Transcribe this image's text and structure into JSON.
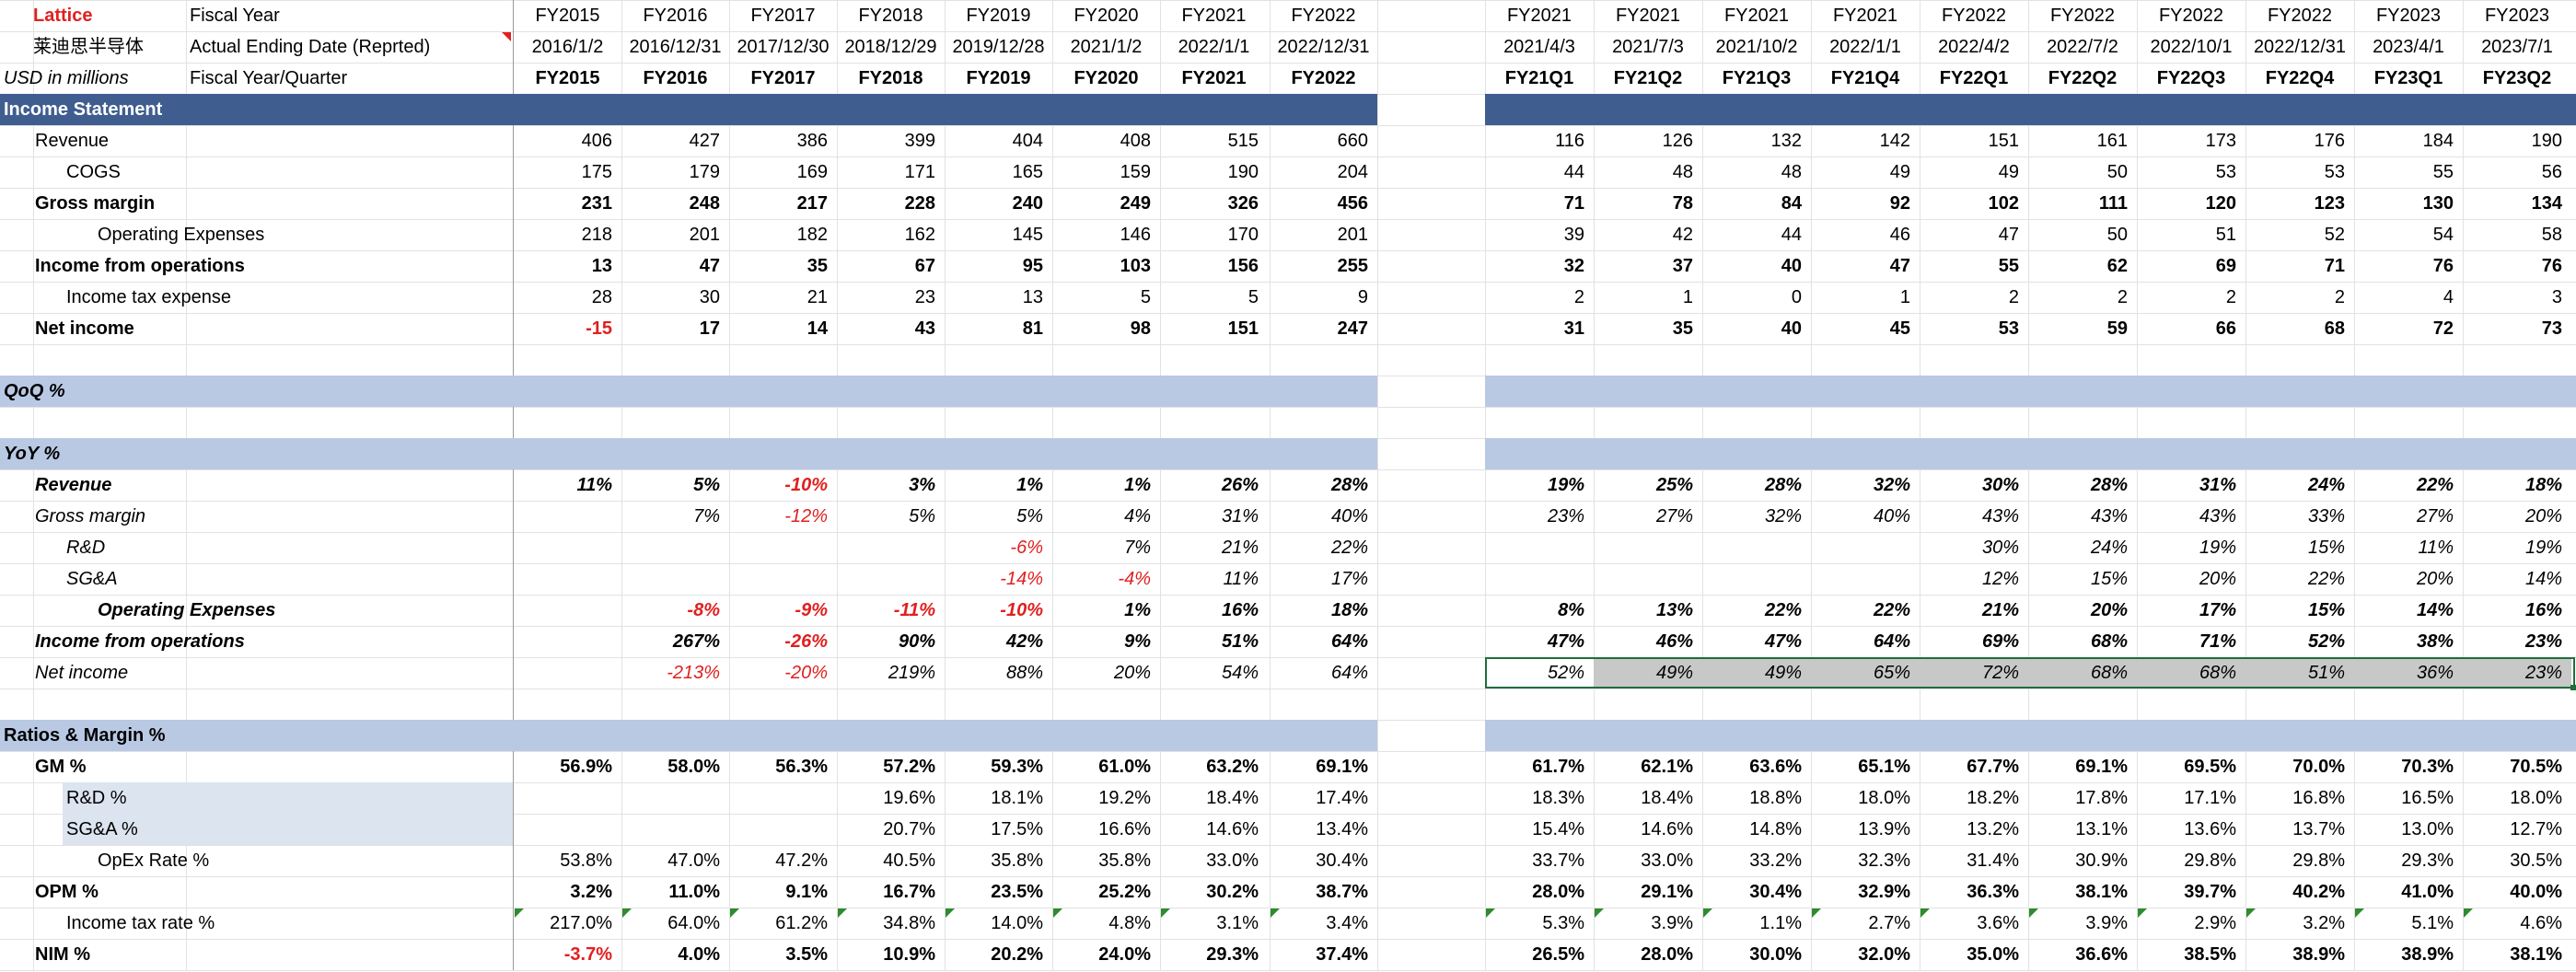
{
  "colors": {
    "header_band": "#3f5d8f",
    "section_band": "#b9c9e4",
    "shaded_label": "#dce4f0",
    "gray_fill": "#c8c8c8",
    "negative": "#e02020",
    "selection": "#1e6e3c"
  },
  "header": {
    "company": "Lattice",
    "company_cn": "莱迪思半导体",
    "units": "USD in millions",
    "row1_label": "Fiscal Year",
    "row2_label": "Actual Ending Date (Reprted)",
    "row3_label": "Fiscal Year/Quarter"
  },
  "annual": {
    "fiscal_years": [
      "FY2015",
      "FY2016",
      "FY2017",
      "FY2018",
      "FY2019",
      "FY2020",
      "FY2021",
      "FY2022"
    ],
    "end_dates": [
      "2016/1/2",
      "2016/12/31",
      "2017/12/30",
      "2018/12/29",
      "2019/12/28",
      "2021/1/2",
      "2022/1/1",
      "2022/12/31"
    ],
    "periods": [
      "FY2015",
      "FY2016",
      "FY2017",
      "FY2018",
      "FY2019",
      "FY2020",
      "FY2021",
      "FY2022"
    ]
  },
  "quarterly": {
    "fiscal_years": [
      "FY2021",
      "FY2021",
      "FY2021",
      "FY2021",
      "FY2022",
      "FY2022",
      "FY2022",
      "FY2022",
      "FY2023",
      "FY2023"
    ],
    "end_dates": [
      "2021/4/3",
      "2021/7/3",
      "2021/10/2",
      "2022/1/1",
      "2022/4/2",
      "2022/7/2",
      "2022/10/1",
      "2022/12/31",
      "2023/4/1",
      "2023/7/1"
    ],
    "periods": [
      "FY21Q1",
      "FY21Q2",
      "FY21Q3",
      "FY21Q4",
      "FY22Q1",
      "FY22Q2",
      "FY22Q3",
      "FY22Q4",
      "FY23Q1",
      "FY23Q2"
    ]
  },
  "rows": [
    {
      "type": "section",
      "label": "Income Statement",
      "style": "dark"
    },
    {
      "label": "Revenue",
      "indent": 1,
      "annual": [
        "406",
        "427",
        "386",
        "399",
        "404",
        "408",
        "515",
        "660"
      ],
      "quarterly": [
        "116",
        "126",
        "132",
        "142",
        "151",
        "161",
        "173",
        "176",
        "184",
        "190"
      ]
    },
    {
      "label": "COGS",
      "indent": 2,
      "annual": [
        "175",
        "179",
        "169",
        "171",
        "165",
        "159",
        "190",
        "204"
      ],
      "quarterly": [
        "44",
        "48",
        "48",
        "49",
        "49",
        "50",
        "53",
        "53",
        "55",
        "56"
      ]
    },
    {
      "label": "Gross margin",
      "indent": 1,
      "bold": true,
      "annual": [
        "231",
        "248",
        "217",
        "228",
        "240",
        "249",
        "326",
        "456"
      ],
      "quarterly": [
        "71",
        "78",
        "84",
        "92",
        "102",
        "111",
        "120",
        "123",
        "130",
        "134"
      ]
    },
    {
      "label": "Operating Expenses",
      "indent": 3,
      "annual": [
        "218",
        "201",
        "182",
        "162",
        "145",
        "146",
        "170",
        "201"
      ],
      "quarterly": [
        "39",
        "42",
        "44",
        "46",
        "47",
        "50",
        "51",
        "52",
        "54",
        "58"
      ]
    },
    {
      "label": "Income from operations",
      "indent": 1,
      "bold": true,
      "annual": [
        "13",
        "47",
        "35",
        "67",
        "95",
        "103",
        "156",
        "255"
      ],
      "quarterly": [
        "32",
        "37",
        "40",
        "47",
        "55",
        "62",
        "69",
        "71",
        "76",
        "76"
      ]
    },
    {
      "label": "Income tax expense",
      "indent": 2,
      "annual": [
        "28",
        "30",
        "21",
        "23",
        "13",
        "5",
        "5",
        "9"
      ],
      "quarterly": [
        "2",
        "1",
        "0",
        "1",
        "2",
        "2",
        "2",
        "2",
        "4",
        "3"
      ]
    },
    {
      "label": "Net income",
      "indent": 1,
      "bold": true,
      "annual": [
        "-15",
        "17",
        "14",
        "43",
        "81",
        "98",
        "151",
        "247"
      ],
      "quarterly": [
        "31",
        "35",
        "40",
        "45",
        "53",
        "59",
        "66",
        "68",
        "72",
        "73"
      ]
    },
    {
      "type": "blank"
    },
    {
      "type": "section",
      "label": "QoQ %",
      "style": "light",
      "italic": true
    },
    {
      "type": "blank"
    },
    {
      "type": "section",
      "label": "YoY %",
      "style": "light",
      "italic": true
    },
    {
      "label": "Revenue",
      "indent": 1,
      "bold": true,
      "italic": true,
      "annual": [
        "11%",
        "5%",
        "-10%",
        "3%",
        "1%",
        "1%",
        "26%",
        "28%"
      ],
      "quarterly": [
        "19%",
        "25%",
        "28%",
        "32%",
        "30%",
        "28%",
        "31%",
        "24%",
        "22%",
        "18%"
      ]
    },
    {
      "label": "Gross margin",
      "indent": 1,
      "italic": true,
      "annual": [
        "",
        "7%",
        "-12%",
        "5%",
        "5%",
        "4%",
        "31%",
        "40%"
      ],
      "quarterly": [
        "23%",
        "27%",
        "32%",
        "40%",
        "43%",
        "43%",
        "43%",
        "33%",
        "27%",
        "20%"
      ]
    },
    {
      "label": "R&D",
      "indent": 2,
      "italic": true,
      "annual": [
        "",
        "",
        "",
        "",
        "-6%",
        "7%",
        "21%",
        "22%"
      ],
      "quarterly": [
        "",
        "",
        "",
        "",
        "30%",
        "24%",
        "19%",
        "15%",
        "11%",
        "19%"
      ]
    },
    {
      "label": "SG&A",
      "indent": 2,
      "italic": true,
      "annual": [
        "",
        "",
        "",
        "",
        "-14%",
        "-4%",
        "11%",
        "17%"
      ],
      "quarterly": [
        "",
        "",
        "",
        "",
        "12%",
        "15%",
        "20%",
        "22%",
        "20%",
        "14%"
      ]
    },
    {
      "label": "Operating Expenses",
      "indent": 3,
      "bold": true,
      "italic": true,
      "annual": [
        "",
        "-8%",
        "-9%",
        "-11%",
        "-10%",
        "1%",
        "16%",
        "18%"
      ],
      "quarterly": [
        "8%",
        "13%",
        "22%",
        "22%",
        "21%",
        "20%",
        "17%",
        "15%",
        "14%",
        "16%"
      ]
    },
    {
      "label": "Income from operations",
      "indent": 1,
      "bold": true,
      "italic": true,
      "annual": [
        "",
        "267%",
        "-26%",
        "90%",
        "42%",
        "9%",
        "51%",
        "64%"
      ],
      "quarterly": [
        "47%",
        "46%",
        "47%",
        "64%",
        "69%",
        "68%",
        "71%",
        "52%",
        "38%",
        "23%"
      ]
    },
    {
      "label": "Net income",
      "indent": 1,
      "italic": true,
      "selected": true,
      "annual": [
        "",
        "-213%",
        "-20%",
        "219%",
        "88%",
        "20%",
        "54%",
        "64%"
      ],
      "quarterly": [
        "52%",
        "49%",
        "49%",
        "65%",
        "72%",
        "68%",
        "68%",
        "51%",
        "36%",
        "23%"
      ]
    },
    {
      "type": "blank"
    },
    {
      "type": "section",
      "label": "Ratios & Margin %",
      "style": "light"
    },
    {
      "label": "GM %",
      "indent": 1,
      "bold": true,
      "annual": [
        "56.9%",
        "58.0%",
        "56.3%",
        "57.2%",
        "59.3%",
        "61.0%",
        "63.2%",
        "69.1%"
      ],
      "quarterly": [
        "61.7%",
        "62.1%",
        "63.6%",
        "65.1%",
        "67.7%",
        "69.1%",
        "69.5%",
        "70.0%",
        "70.3%",
        "70.5%"
      ]
    },
    {
      "label": "R&D %",
      "indent": 2,
      "shaded": true,
      "annual": [
        "",
        "",
        "",
        "19.6%",
        "18.1%",
        "19.2%",
        "18.4%",
        "17.4%"
      ],
      "quarterly": [
        "18.3%",
        "18.4%",
        "18.8%",
        "18.0%",
        "18.2%",
        "17.8%",
        "17.1%",
        "16.8%",
        "16.5%",
        "18.0%"
      ]
    },
    {
      "label": "SG&A %",
      "indent": 2,
      "shaded": true,
      "annual": [
        "",
        "",
        "",
        "20.7%",
        "17.5%",
        "16.6%",
        "14.6%",
        "13.4%"
      ],
      "quarterly": [
        "15.4%",
        "14.6%",
        "14.8%",
        "13.9%",
        "13.2%",
        "13.1%",
        "13.6%",
        "13.7%",
        "13.0%",
        "12.7%"
      ]
    },
    {
      "label": "OpEx Rate %",
      "indent": 3,
      "annual": [
        "53.8%",
        "47.0%",
        "47.2%",
        "40.5%",
        "35.8%",
        "35.8%",
        "33.0%",
        "30.4%"
      ],
      "quarterly": [
        "33.7%",
        "33.0%",
        "33.2%",
        "32.3%",
        "31.4%",
        "30.9%",
        "29.8%",
        "29.8%",
        "29.3%",
        "30.5%"
      ]
    },
    {
      "label": "OPM %",
      "indent": 1,
      "bold": true,
      "annual": [
        "3.2%",
        "11.0%",
        "9.1%",
        "16.7%",
        "23.5%",
        "25.2%",
        "30.2%",
        "38.7%"
      ],
      "quarterly": [
        "28.0%",
        "29.1%",
        "30.4%",
        "32.9%",
        "36.3%",
        "38.1%",
        "39.7%",
        "40.2%",
        "41.0%",
        "40.0%"
      ]
    },
    {
      "label": "Income tax rate %",
      "indent": 2,
      "flag": true,
      "annual": [
        "217.0%",
        "64.0%",
        "61.2%",
        "34.8%",
        "14.0%",
        "4.8%",
        "3.1%",
        "3.4%"
      ],
      "quarterly": [
        "5.3%",
        "3.9%",
        "1.1%",
        "2.7%",
        "3.6%",
        "3.9%",
        "2.9%",
        "3.2%",
        "5.1%",
        "4.6%"
      ]
    },
    {
      "label": "NIM %",
      "indent": 1,
      "bold": true,
      "annual": [
        "-3.7%",
        "4.0%",
        "3.5%",
        "10.9%",
        "20.2%",
        "24.0%",
        "29.3%",
        "37.4%"
      ],
      "quarterly": [
        "26.5%",
        "28.0%",
        "30.0%",
        "32.0%",
        "35.0%",
        "36.6%",
        "38.5%",
        "38.9%",
        "38.9%",
        "38.1%"
      ]
    }
  ]
}
